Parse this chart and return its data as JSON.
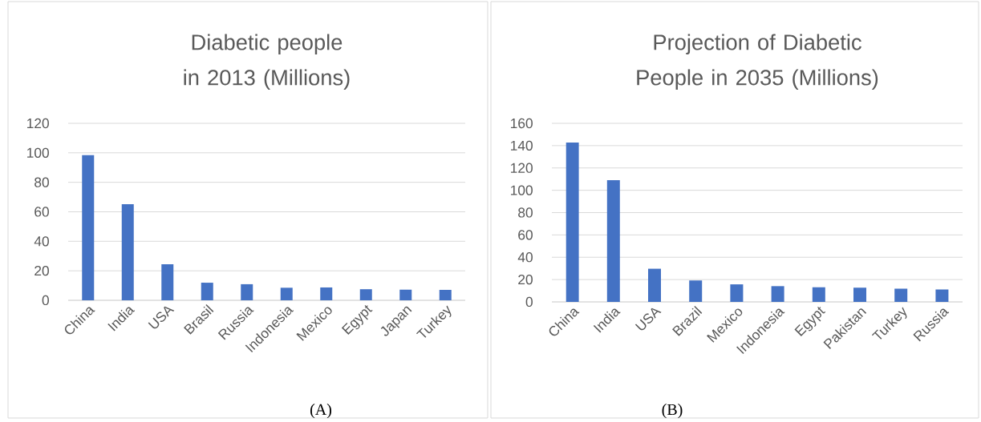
{
  "chart_data": [
    {
      "type": "bar",
      "title": "Diabetic people in 2013 (Millions)",
      "categories": [
        "China",
        "India",
        "USA",
        "Brasil",
        "Russia",
        "Indonesia",
        "Mexico",
        "Egypt",
        "Japan",
        "Turkey"
      ],
      "values": [
        98.4,
        65.1,
        24.4,
        11.9,
        10.9,
        8.5,
        8.7,
        7.5,
        7.2,
        7.0
      ],
      "color": "#4472c4",
      "ylim": [
        0,
        120
      ],
      "yticks": [
        0,
        20,
        40,
        60,
        80,
        100,
        120
      ],
      "grid": "y",
      "annotations": [
        "(A)"
      ]
    },
    {
      "type": "bar",
      "title": "Projection of Diabetic People in 2035 (Millions)",
      "categories": [
        "China",
        "India",
        "USA",
        "Brazil",
        "Mexico",
        "Indonesia",
        "Egypt",
        "Pakistan",
        "Turkey",
        "Russia"
      ],
      "values": [
        142.7,
        109.0,
        29.7,
        19.2,
        15.7,
        14.1,
        13.1,
        12.8,
        11.8,
        11.2
      ],
      "color": "#4472c4",
      "ylim": [
        0,
        160
      ],
      "yticks": [
        0,
        20,
        40,
        60,
        80,
        100,
        120,
        140,
        160
      ],
      "grid": "y",
      "annotations": [
        "(B)"
      ]
    }
  ]
}
